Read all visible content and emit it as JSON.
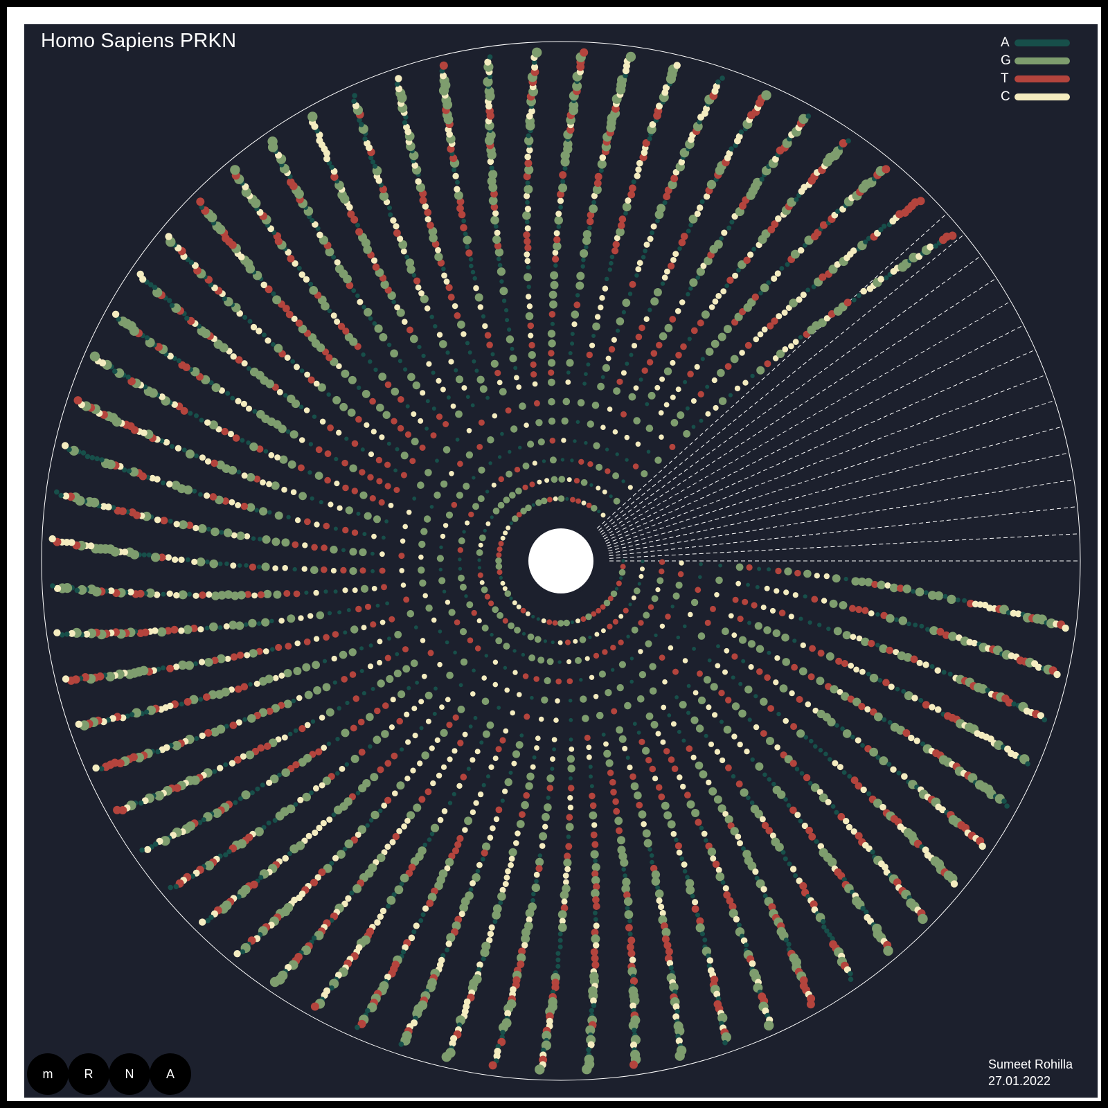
{
  "title": "Homo Sapiens PRKN",
  "legend": [
    {
      "label": "A",
      "color": "#174f4a"
    },
    {
      "label": "G",
      "color": "#7e9d6e"
    },
    {
      "label": "T",
      "color": "#b4443d"
    },
    {
      "label": "C",
      "color": "#f4ecc0"
    }
  ],
  "brand": [
    "m",
    "R",
    "N",
    "A"
  ],
  "credit": {
    "author": "Sumeet Rohilla",
    "date": "27.01.2022"
  },
  "chart_data": {
    "type": "radial-dot-sequence",
    "subject": "Homo Sapiens PRKN",
    "encoding": {
      "A": "#174f4a",
      "G": "#7e9d6e",
      "T": "#b4443d",
      "C": "#f4ecc0"
    },
    "sequence": "ATGATAGTGTTTGTCAGGTTCAACTCCAGCCATGGTTTCCCAGTGGAGGTCGATTCTGACACCAGCATCTTCCAGCTCAAGGAGGTGGTTGCTAAGCGACAGGGGGTTCCGGCTGACCAGTTGCGTGTGATTTTCGCAGGGAAGGAGCTGAGGAATGACTGGACTGTGCAGAATTGTGACCTGGATCAGCAGAGCATTGTTCACATTGTGCAGAGACCGTGGAGAAAAGGTCAAGAAATGAATGCAACTGGAGGCGACGACCCCAGAAACGCGGCGGGAGGCTGTGAGCGGGAGCCCCAGAGCTTGACTCGGGTGGACCTCAGCAGCTCAGTCCTCCCAGGAGACTCTGTGGGGCTGGCTGTCATTCTGCACACTGACAGCAGGAAGGACTCACCACCAGCTGGAAGTCCAGCAGGTAGATCAATCTACAACAGCTTTTATGTGTATTGCAAAGGCCCCTGTCAAAGAGTGCAGCCGGGAAAACTCAGGGTACAGTGCAGCACCTGCAGGCAGGCAACGCTCACCTTGACCCAGGGTCCATCTTGCTGGGATGATGTTTTAATTCCAAACCGGATGAGTGGTGAATGCCAATCCCCACACTGCCCTGGGACTAGTGCAGAATTTTTCTTTAAATGTGGAGCACACCCCACCTCTGACAAGGAAACATCAGTAGCTTTGCACCTGATCGCAACAAATAGTCGGAACATCACTTGCATTACGTGCACAGACGTCAGGAGCCCCGTCCTGGTTTTCCAGTGCAACTCCCGCCACGTGATTTGCTTAGACTGTTTCCACTTATACTGTGTGACAAGACTCAATGATCGGCAGTTTGTTCACGACCCTCAACTTGGCTACTCCCTGCCTTGTGTGGCTGGCTGTCCCAACTCCTTGATTAAAGAGCTCCATCACTTCAGGATTCTGGGAGAAGAGCAGTACAACCGGTACCAGCAGTATGGTGCAGAGGAGTGTGTCCTGCAGATGGGGGGCGTGTTATGCCCCCGCCCTGGCTGTGGAGCGGGGCTGCTGCCGGAGCCTGACCAGAGGAAAGTCACCTGCGAAGGGGGCAATGGCCTGGGCTGTGGGTTTGCCTTCTGCCGGGAATGTAAAGAAGCGTACCATGAAGGGGAGTGCAGTGCCGTATTTGAAGCCTCAGGAACAACTACTCAGGCCTACAGAGTCGATGAAAGAGCCGCCGAGCAGGCTCGTTGGGAAGCAGCCTCCAAAGAAACCATCAAGAAAACCACCAAGCCCTGTCCCCGCTGCCATGTACCAGTGGAAAAAAATGGAGGCTGCATGCACATGAAGTGTCCGCAGCCCCAGTGCAGGCTCGAATGGTGCTGGAACTGTGGCTGCGAGTGGAACCGCGTCTGCATGGGGGACCACTGGTTCGACGTGTAG",
    "ring_count": 24,
    "spoke_count": 60,
    "empty_sector_degrees": [
      -42,
      0
    ]
  }
}
